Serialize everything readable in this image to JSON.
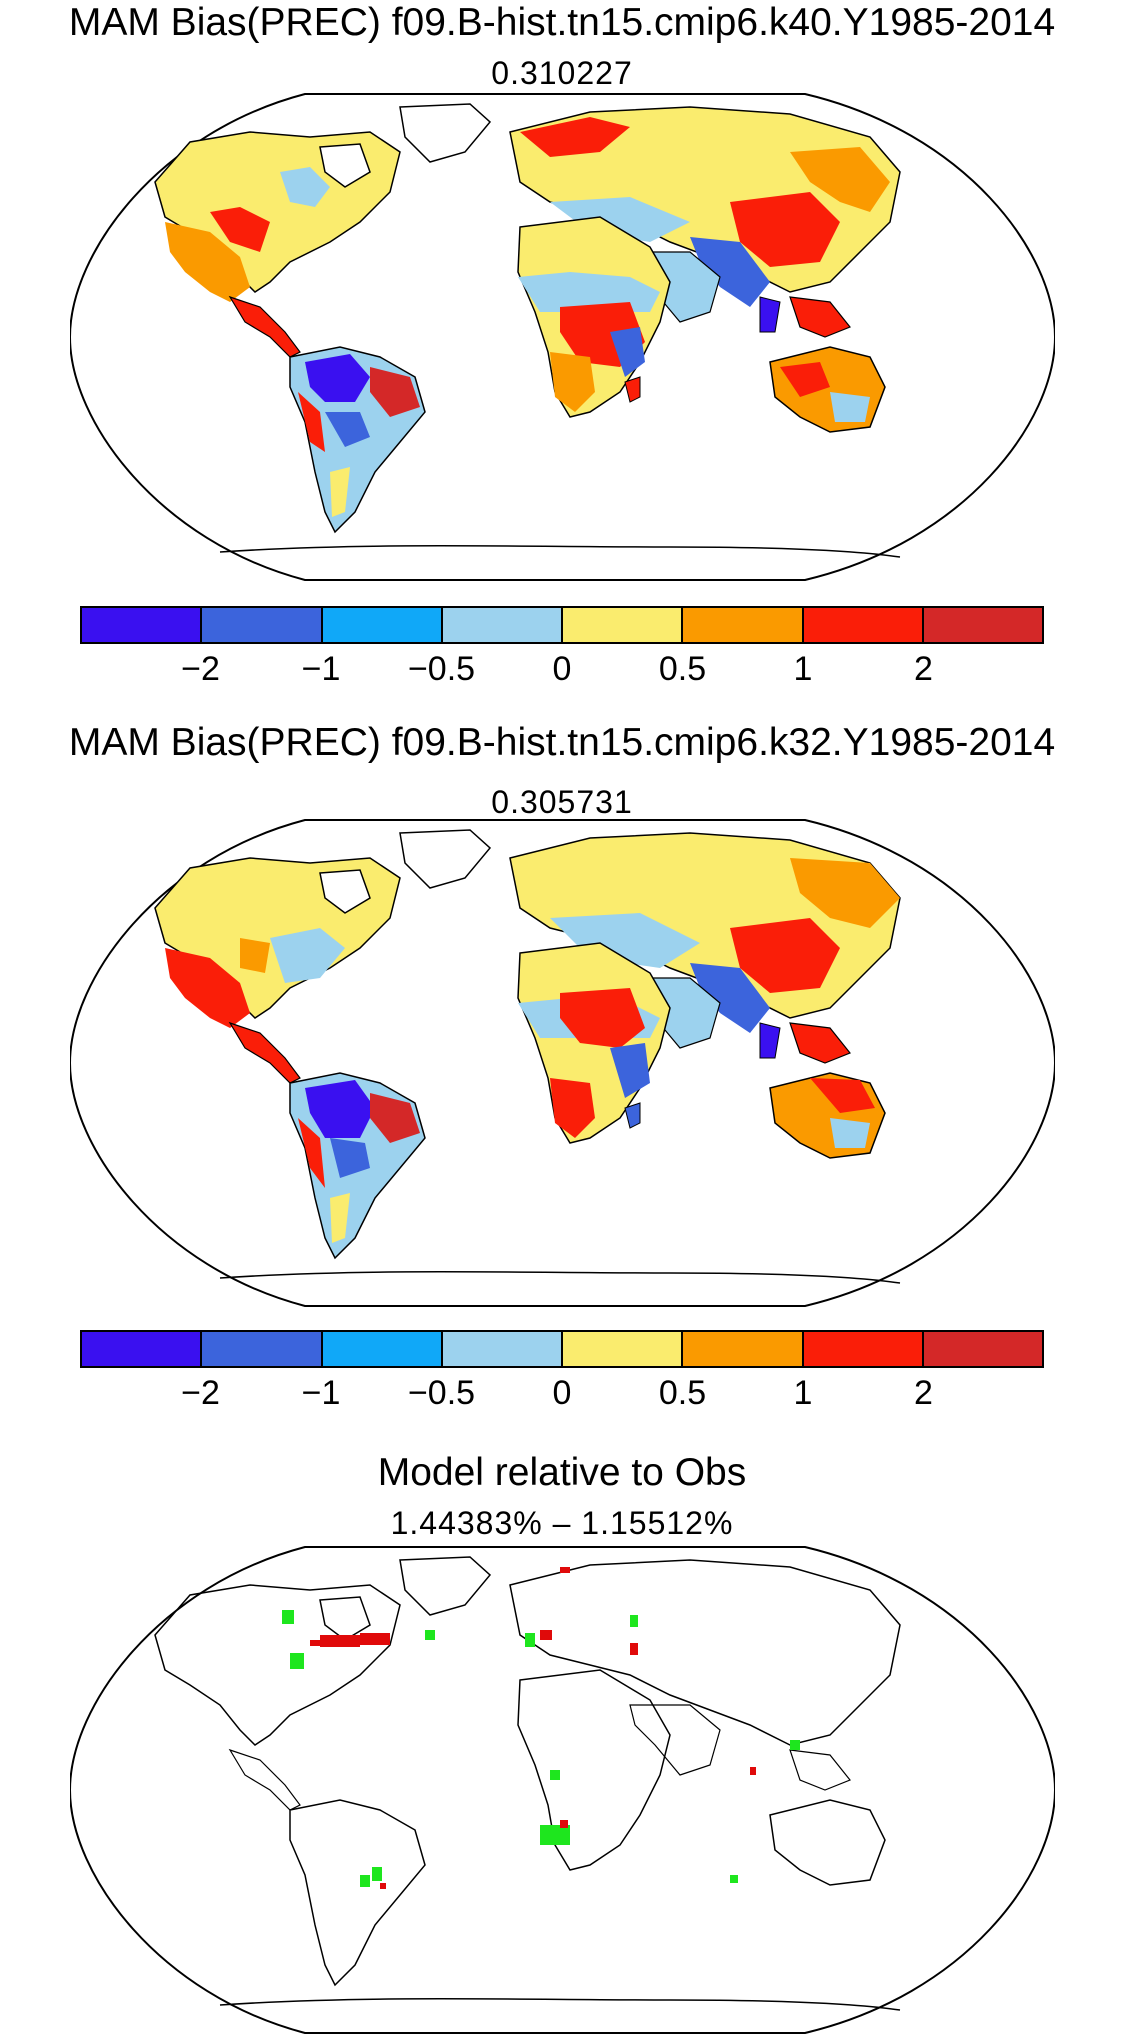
{
  "panels": [
    {
      "title": "MAM Bias(PREC) f09.B-hist.tn15.cmip6.k40.Y1985-2014",
      "subtitle": "0.310227"
    },
    {
      "title": "MAM Bias(PREC) f09.B-hist.tn15.cmip6.k32.Y1985-2014",
      "subtitle": "0.305731"
    },
    {
      "title": "Model relative to Obs",
      "subtitle": "1.44383% – 1.15512%"
    }
  ],
  "colorbar": {
    "colors": [
      "#3a10f0",
      "#3c64dc",
      "#10a8f8",
      "#9cd2ee",
      "#faec6e",
      "#fa9a00",
      "#fa1e08",
      "#d42828"
    ],
    "labels": [
      "−2",
      "−1",
      "−0.5",
      "0",
      "0.5",
      "1",
      "2"
    ]
  },
  "difference_colors": {
    "improved": "#1ee61e",
    "degraded": "#e00a0a"
  }
}
